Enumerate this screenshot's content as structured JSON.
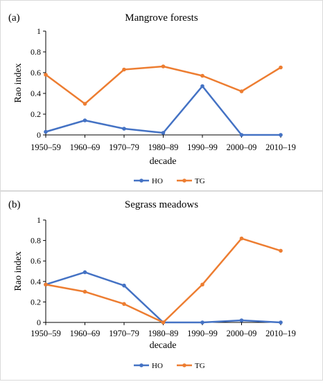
{
  "chart_data": [
    {
      "type": "line",
      "panel_label": "(a)",
      "title": "Mangrove forests",
      "xlabel": "decade",
      "ylabel": "Rao index",
      "categories": [
        "1950–59",
        "1960–69",
        "1970–79",
        "1980–89",
        "1990–99",
        "2000–09",
        "2010–19"
      ],
      "ylim": [
        0,
        1
      ],
      "yticks": [
        "0",
        "0.2",
        "0.4",
        "0.6",
        "0.8",
        "1"
      ],
      "grid": false,
      "legend_position": "bottom",
      "series": [
        {
          "name": "HO",
          "color": "#4472c4",
          "values": [
            0.03,
            0.14,
            0.06,
            0.02,
            0.47,
            0.0,
            0.0
          ]
        },
        {
          "name": "TG",
          "color": "#ed7d31",
          "values": [
            0.58,
            0.3,
            0.63,
            0.66,
            0.57,
            0.42,
            0.65
          ]
        }
      ]
    },
    {
      "type": "line",
      "panel_label": "(b)",
      "title": "Segrass meadows",
      "xlabel": "decade",
      "ylabel": "Rao index",
      "categories": [
        "1950–59",
        "1960–69",
        "1970–79",
        "1980–89",
        "1990–99",
        "2000–09",
        "2010–19"
      ],
      "ylim": [
        0,
        1
      ],
      "yticks": [
        "0",
        "0.2",
        "0.4",
        "0.6",
        "0.8",
        "1"
      ],
      "grid": false,
      "legend_position": "bottom",
      "series": [
        {
          "name": "HO",
          "color": "#4472c4",
          "values": [
            0.37,
            0.49,
            0.36,
            0.0,
            0.0,
            0.02,
            0.0
          ]
        },
        {
          "name": "TG",
          "color": "#ed7d31",
          "values": [
            0.37,
            0.3,
            0.18,
            0.0,
            0.37,
            0.82,
            0.7
          ]
        }
      ]
    }
  ]
}
